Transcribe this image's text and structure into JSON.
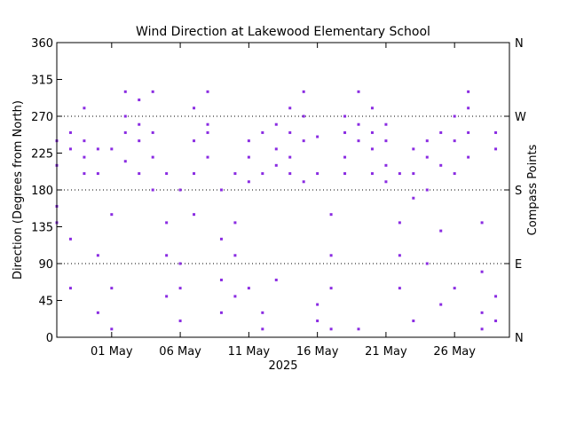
{
  "chart_data": {
    "type": "scatter",
    "title": "Wind Direction at Lakewood Elementary School",
    "ylabel": "Direction (Degrees from North)",
    "ylabel_right": "Compass Points",
    "xlabel": "2025",
    "xlim": [
      "2025-04-27",
      "2025-05-30"
    ],
    "ylim": [
      0,
      360
    ],
    "yticks": [
      0,
      45,
      90,
      135,
      180,
      225,
      270,
      315,
      360
    ],
    "right_ticks": [
      {
        "value": 0,
        "label": "N"
      },
      {
        "value": 90,
        "label": "E"
      },
      {
        "value": 180,
        "label": "S"
      },
      {
        "value": 270,
        "label": "W"
      },
      {
        "value": 360,
        "label": "N"
      }
    ],
    "xticks": [
      {
        "date": "2025-05-01",
        "label": "01 May"
      },
      {
        "date": "2025-05-06",
        "label": "06 May"
      },
      {
        "date": "2025-05-11",
        "label": "11 May"
      },
      {
        "date": "2025-05-16",
        "label": "16 May"
      },
      {
        "date": "2025-05-21",
        "label": "21 May"
      },
      {
        "date": "2025-05-26",
        "label": "26 May"
      }
    ],
    "reference_lines": [
      90,
      180,
      270
    ],
    "color": "#8a2be2",
    "series": [
      {
        "points": [
          [
            "2025-04-27",
            210
          ],
          [
            "2025-04-27",
            240
          ],
          [
            "2025-04-27",
            140
          ],
          [
            "2025-04-27",
            160
          ],
          [
            "2025-04-28",
            120
          ],
          [
            "2025-04-28",
            230
          ],
          [
            "2025-04-28",
            250
          ],
          [
            "2025-04-28",
            60
          ],
          [
            "2025-04-29",
            240
          ],
          [
            "2025-04-29",
            220
          ],
          [
            "2025-04-29",
            280
          ],
          [
            "2025-04-29",
            200
          ],
          [
            "2025-04-30",
            230
          ],
          [
            "2025-04-30",
            30
          ],
          [
            "2025-04-30",
            100
          ],
          [
            "2025-04-30",
            200
          ],
          [
            "2025-05-01",
            10
          ],
          [
            "2025-05-01",
            60
          ],
          [
            "2025-05-01",
            150
          ],
          [
            "2025-05-01",
            230
          ],
          [
            "2025-05-02",
            250
          ],
          [
            "2025-05-02",
            270
          ],
          [
            "2025-05-02",
            300
          ],
          [
            "2025-05-02",
            215
          ],
          [
            "2025-05-03",
            240
          ],
          [
            "2025-05-03",
            260
          ],
          [
            "2025-05-03",
            290
          ],
          [
            "2025-05-03",
            200
          ],
          [
            "2025-05-04",
            180
          ],
          [
            "2025-05-04",
            220
          ],
          [
            "2025-05-04",
            300
          ],
          [
            "2025-05-04",
            250
          ],
          [
            "2025-05-05",
            100
          ],
          [
            "2025-05-05",
            50
          ],
          [
            "2025-05-05",
            200
          ],
          [
            "2025-05-05",
            140
          ],
          [
            "2025-05-06",
            20
          ],
          [
            "2025-05-06",
            90
          ],
          [
            "2025-05-06",
            180
          ],
          [
            "2025-05-06",
            60
          ],
          [
            "2025-05-07",
            200
          ],
          [
            "2025-05-07",
            240
          ],
          [
            "2025-05-07",
            280
          ],
          [
            "2025-05-07",
            150
          ],
          [
            "2025-05-08",
            250
          ],
          [
            "2025-05-08",
            300
          ],
          [
            "2025-05-08",
            220
          ],
          [
            "2025-05-08",
            260
          ],
          [
            "2025-05-09",
            120
          ],
          [
            "2025-05-09",
            30
          ],
          [
            "2025-05-09",
            180
          ],
          [
            "2025-05-09",
            70
          ],
          [
            "2025-05-10",
            50
          ],
          [
            "2025-05-10",
            140
          ],
          [
            "2025-05-10",
            200
          ],
          [
            "2025-05-10",
            100
          ],
          [
            "2025-05-11",
            220
          ],
          [
            "2025-05-11",
            240
          ],
          [
            "2025-05-11",
            190
          ],
          [
            "2025-05-11",
            60
          ],
          [
            "2025-05-12",
            30
          ],
          [
            "2025-05-12",
            10
          ],
          [
            "2025-05-12",
            200
          ],
          [
            "2025-05-12",
            250
          ],
          [
            "2025-05-13",
            210
          ],
          [
            "2025-05-13",
            260
          ],
          [
            "2025-05-13",
            230
          ],
          [
            "2025-05-13",
            70
          ],
          [
            "2025-05-14",
            220
          ],
          [
            "2025-05-14",
            250
          ],
          [
            "2025-05-14",
            280
          ],
          [
            "2025-05-14",
            200
          ],
          [
            "2025-05-15",
            240
          ],
          [
            "2025-05-15",
            270
          ],
          [
            "2025-05-15",
            190
          ],
          [
            "2025-05-15",
            300
          ],
          [
            "2025-05-16",
            245
          ],
          [
            "2025-05-16",
            200
          ],
          [
            "2025-05-16",
            40
          ],
          [
            "2025-05-16",
            20
          ],
          [
            "2025-05-17",
            100
          ],
          [
            "2025-05-17",
            10
          ],
          [
            "2025-05-17",
            150
          ],
          [
            "2025-05-17",
            60
          ],
          [
            "2025-05-18",
            220
          ],
          [
            "2025-05-18",
            250
          ],
          [
            "2025-05-18",
            270
          ],
          [
            "2025-05-18",
            200
          ],
          [
            "2025-05-19",
            240
          ],
          [
            "2025-05-19",
            260
          ],
          [
            "2025-05-19",
            300
          ],
          [
            "2025-05-19",
            10
          ],
          [
            "2025-05-20",
            250
          ],
          [
            "2025-05-20",
            230
          ],
          [
            "2025-05-20",
            200
          ],
          [
            "2025-05-20",
            280
          ],
          [
            "2025-05-21",
            210
          ],
          [
            "2025-05-21",
            240
          ],
          [
            "2025-05-21",
            190
          ],
          [
            "2025-05-21",
            260
          ],
          [
            "2025-05-22",
            100
          ],
          [
            "2025-05-22",
            60
          ],
          [
            "2025-05-22",
            200
          ],
          [
            "2025-05-22",
            140
          ],
          [
            "2025-05-23",
            230
          ],
          [
            "2025-05-23",
            200
          ],
          [
            "2025-05-23",
            20
          ],
          [
            "2025-05-23",
            170
          ],
          [
            "2025-05-24",
            220
          ],
          [
            "2025-05-24",
            240
          ],
          [
            "2025-05-24",
            180
          ],
          [
            "2025-05-24",
            90
          ],
          [
            "2025-05-25",
            210
          ],
          [
            "2025-05-25",
            250
          ],
          [
            "2025-05-25",
            130
          ],
          [
            "2025-05-25",
            40
          ],
          [
            "2025-05-26",
            200
          ],
          [
            "2025-05-26",
            60
          ],
          [
            "2025-05-26",
            240
          ],
          [
            "2025-05-26",
            270
          ],
          [
            "2025-05-27",
            250
          ],
          [
            "2025-05-27",
            280
          ],
          [
            "2025-05-27",
            300
          ],
          [
            "2025-05-27",
            220
          ],
          [
            "2025-05-28",
            30
          ],
          [
            "2025-05-28",
            80
          ],
          [
            "2025-05-28",
            10
          ],
          [
            "2025-05-28",
            140
          ],
          [
            "2025-05-29",
            20
          ],
          [
            "2025-05-29",
            50
          ],
          [
            "2025-05-29",
            230
          ],
          [
            "2025-05-29",
            250
          ]
        ]
      }
    ],
    "grid": false
  }
}
